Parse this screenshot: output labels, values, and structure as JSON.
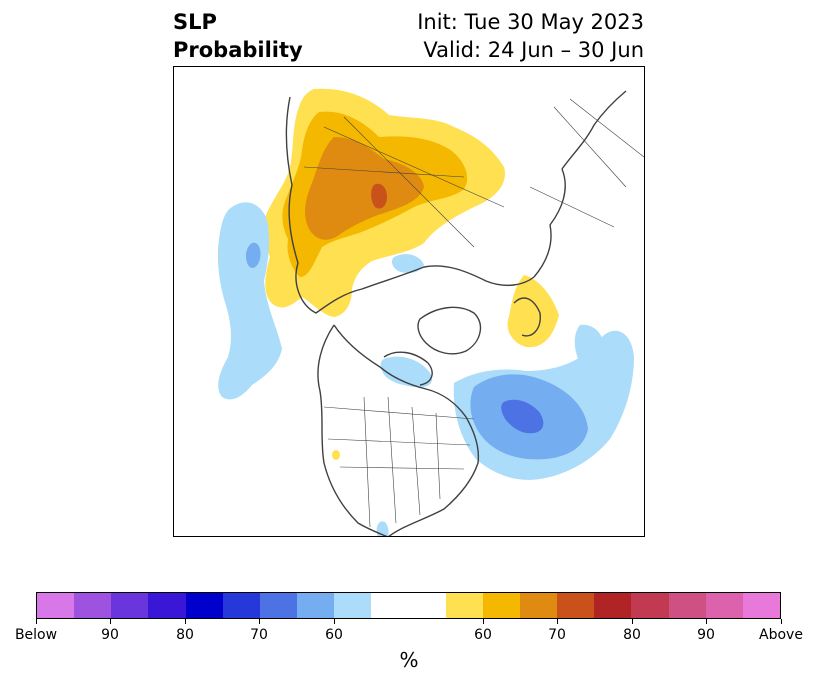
{
  "title": {
    "left_line1": "SLP",
    "left_line2": "Probability",
    "right_line1": "Init: Tue 30 May 2023",
    "right_line2": "Valid: 24 Jun – 30 Jun"
  },
  "colorbar": {
    "colors": [
      "#d877e8",
      "#9d52e0",
      "#6a35dc",
      "#3a17d6",
      "#0000cc",
      "#2638d9",
      "#4d72e3",
      "#74aef0",
      "#abdcf9",
      "#ffffff",
      "#ffe050",
      "#f4b800",
      "#df8a10",
      "#c9521a",
      "#b02426",
      "#c23a52",
      "#cf5184",
      "#dc62ad",
      "#e878da"
    ],
    "tick_labels": [
      "Below",
      "90",
      "80",
      "70",
      "60",
      "60",
      "70",
      "80",
      "90",
      "Above"
    ],
    "unit": "%"
  },
  "map": {
    "colors": {
      "above_1": "#ffe050",
      "above_2": "#f4b800",
      "above_3": "#df8a10",
      "above_4": "#c9521a",
      "below_1": "#abdcf9",
      "below_2": "#74aef0",
      "below_3": "#4d72e3",
      "coast": "#404040"
    }
  }
}
